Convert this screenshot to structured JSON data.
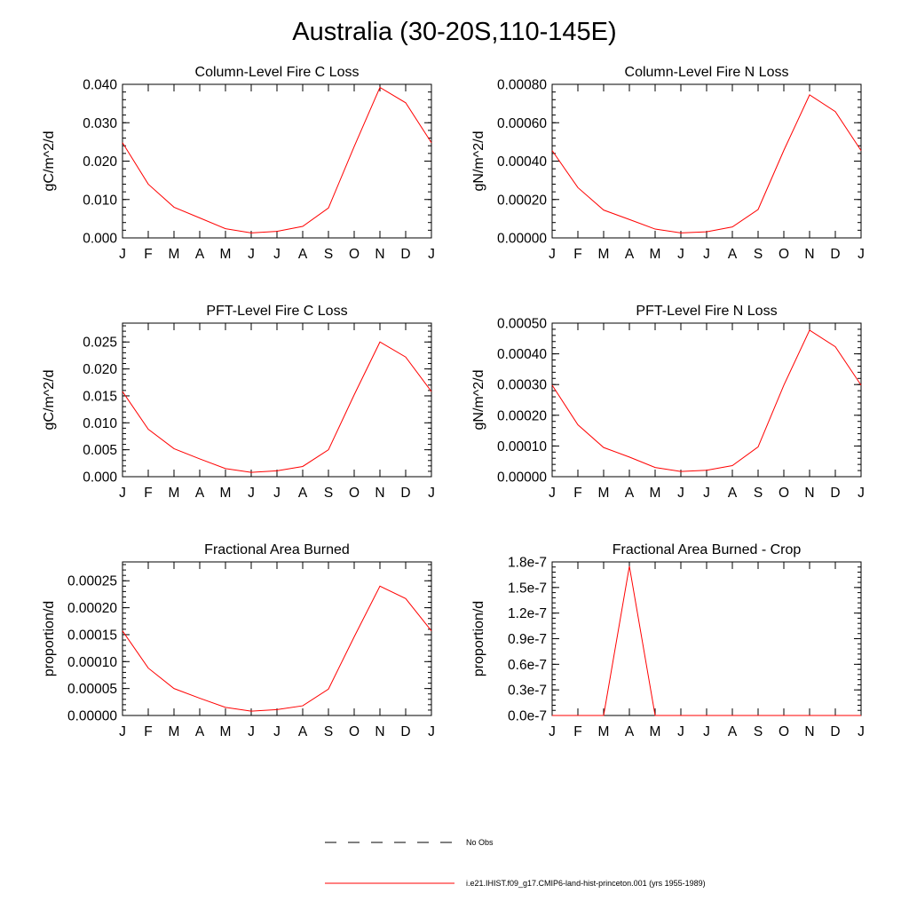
{
  "page_title": "Australia (30-20S,110-145E)",
  "legend": {
    "entries": [
      {
        "label": "No Obs",
        "color": "#000000",
        "style": "dashed"
      },
      {
        "label": "i.e21.IHIST.f09_g17.CMIP6-land-hist-princeton.001 (yrs 1955-1989)",
        "color": "#ff0000",
        "style": "solid"
      }
    ]
  },
  "chart_data": [
    {
      "type": "line",
      "title": "Column-Level Fire C Loss",
      "ylabel": "gC/m^2/d",
      "categories": [
        "J",
        "F",
        "M",
        "A",
        "M",
        "J",
        "J",
        "A",
        "S",
        "O",
        "N",
        "D",
        "J"
      ],
      "ylim": [
        0,
        0.04
      ],
      "yticks": [
        "0.000",
        "0.010",
        "0.020",
        "0.030",
        "0.040"
      ],
      "yticks_values": [
        0,
        0.01,
        0.02,
        0.03,
        0.04
      ],
      "series": [
        {
          "values": [
            0.0248,
            0.014,
            0.008,
            0.0052,
            0.0024,
            0.0013,
            0.0017,
            0.003,
            0.0078,
            0.0238,
            0.0392,
            0.0352,
            0.0248
          ],
          "color": "#ff0000"
        }
      ]
    },
    {
      "type": "line",
      "title": "Column-Level Fire N Loss",
      "ylabel": "gN/m^2/d",
      "categories": [
        "J",
        "F",
        "M",
        "A",
        "M",
        "J",
        "J",
        "A",
        "S",
        "O",
        "N",
        "D",
        "J"
      ],
      "ylim": [
        0,
        0.0008
      ],
      "yticks": [
        "0.00000",
        "0.00020",
        "0.00040",
        "0.00060",
        "0.00080"
      ],
      "yticks_values": [
        0,
        0.0002,
        0.0004,
        0.0006,
        0.0008
      ],
      "series": [
        {
          "values": [
            0.000455,
            0.000262,
            0.000145,
            9.6e-05,
            4.6e-05,
            2.6e-05,
            3.2e-05,
            5.7e-05,
            0.000148,
            0.000456,
            0.000745,
            0.000658,
            0.000455
          ],
          "color": "#ff0000"
        }
      ]
    },
    {
      "type": "line",
      "title": "PFT-Level Fire C Loss",
      "ylabel": "gC/m^2/d",
      "categories": [
        "J",
        "F",
        "M",
        "A",
        "M",
        "J",
        "J",
        "A",
        "S",
        "O",
        "N",
        "D",
        "J"
      ],
      "ylim": [
        0,
        0.0285
      ],
      "yticks": [
        "0.000",
        "0.005",
        "0.010",
        "0.015",
        "0.020",
        "0.025"
      ],
      "yticks_values": [
        0,
        0.005,
        0.01,
        0.015,
        0.02,
        0.025
      ],
      "series": [
        {
          "values": [
            0.0158,
            0.0088,
            0.0052,
            0.0033,
            0.0015,
            0.0008,
            0.0011,
            0.0019,
            0.005,
            0.0152,
            0.025,
            0.0222,
            0.0158
          ],
          "color": "#ff0000"
        }
      ]
    },
    {
      "type": "line",
      "title": "PFT-Level Fire N Loss",
      "ylabel": "gN/m^2/d",
      "categories": [
        "J",
        "F",
        "M",
        "A",
        "M",
        "J",
        "J",
        "A",
        "S",
        "O",
        "N",
        "D",
        "J"
      ],
      "ylim": [
        0,
        0.0005
      ],
      "yticks": [
        "0.00000",
        "0.00010",
        "0.00020",
        "0.00030",
        "0.00040",
        "0.00050"
      ],
      "yticks_values": [
        0,
        0.0001,
        0.0002,
        0.0003,
        0.0004,
        0.0005
      ],
      "series": [
        {
          "values": [
            0.000298,
            0.000169,
            9.5e-05,
            6.4e-05,
            3e-05,
            1.7e-05,
            2.1e-05,
            3.6e-05,
            9.7e-05,
            0.000298,
            0.000477,
            0.000423,
            0.000298
          ],
          "color": "#ff0000"
        }
      ]
    },
    {
      "type": "line",
      "title": "Fractional Area Burned",
      "ylabel": "proportion/d",
      "categories": [
        "J",
        "F",
        "M",
        "A",
        "M",
        "J",
        "J",
        "A",
        "S",
        "O",
        "N",
        "D",
        "J"
      ],
      "ylim": [
        0,
        0.000285
      ],
      "yticks": [
        "0.00000",
        "0.00005",
        "0.00010",
        "0.00015",
        "0.00020",
        "0.00025"
      ],
      "yticks_values": [
        0,
        5e-05,
        0.0001,
        0.00015,
        0.0002,
        0.00025
      ],
      "series": [
        {
          "values": [
            0.000157,
            8.8e-05,
            5e-05,
            3.2e-05,
            1.5e-05,
            8e-06,
            1.1e-05,
            1.8e-05,
            4.9e-05,
            0.000146,
            0.00024,
            0.000217,
            0.000157
          ],
          "color": "#ff0000"
        }
      ]
    },
    {
      "type": "line",
      "title": "Fractional Area Burned - Crop",
      "ylabel": "proportion/d",
      "categories": [
        "J",
        "F",
        "M",
        "A",
        "M",
        "J",
        "J",
        "A",
        "S",
        "O",
        "N",
        "D",
        "J"
      ],
      "ylim": [
        0,
        1.8e-07
      ],
      "yticks": [
        "0.0e-7",
        "0.3e-7",
        "0.6e-7",
        "0.9e-7",
        "1.2e-7",
        "1.5e-7",
        "1.8e-7"
      ],
      "yticks_values": [
        0,
        3e-08,
        6e-08,
        9e-08,
        1.2e-07,
        1.5e-07,
        1.8e-07
      ],
      "series": [
        {
          "values": [
            0,
            0,
            0,
            1.75e-07,
            0,
            0,
            0,
            0,
            0,
            0,
            0,
            0,
            0
          ],
          "color": "#ff0000"
        }
      ]
    }
  ]
}
